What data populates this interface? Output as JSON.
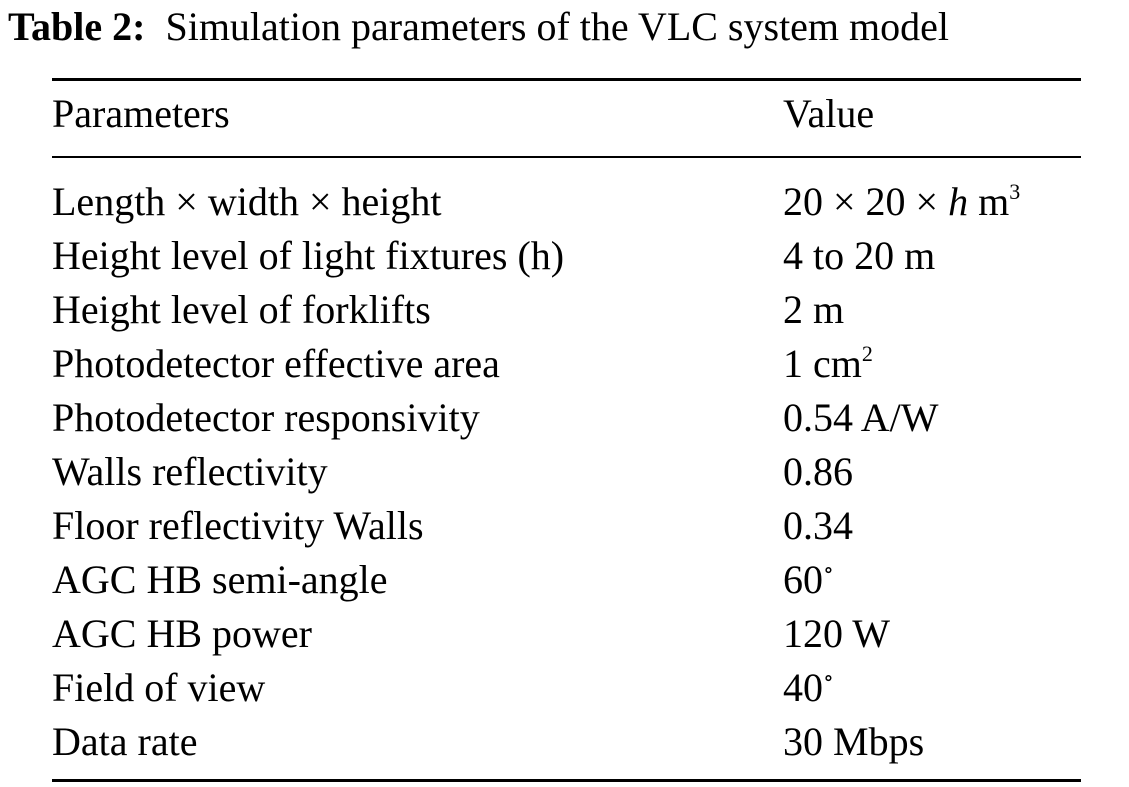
{
  "caption": {
    "label": "Table 2:",
    "text": "Simulation parameters of the VLC system model"
  },
  "table": {
    "headers": {
      "param": "Parameters",
      "value": "Value"
    },
    "rows": [
      {
        "param": "Length × width × height",
        "value": "20 × 20 × ",
        "value_ital": "h",
        "value_tail": " m",
        "value_sup": "3"
      },
      {
        "param": "Height level of light fixtures (h)",
        "value": "4 to 20 m",
        "value_ital": "",
        "value_tail": "",
        "value_sup": ""
      },
      {
        "param": "Height level of forklifts",
        "value": "2 m",
        "value_ital": "",
        "value_tail": "",
        "value_sup": ""
      },
      {
        "param": "Photodetector effective area",
        "value": "1 cm",
        "value_ital": "",
        "value_tail": "",
        "value_sup": "2"
      },
      {
        "param": "Photodetector responsivity",
        "value": "0.54 A/W",
        "value_ital": "",
        "value_tail": "",
        "value_sup": ""
      },
      {
        "param": "Walls reflectivity",
        "value": "0.86",
        "value_ital": "",
        "value_tail": "",
        "value_sup": ""
      },
      {
        "param": "Floor reflectivity Walls",
        "value": "0.34",
        "value_ital": "",
        "value_tail": "",
        "value_sup": ""
      },
      {
        "param": "AGC HB semi-angle",
        "value": "60",
        "value_ital": "",
        "value_tail": "",
        "value_sup": "∘"
      },
      {
        "param": "AGC HB power",
        "value": "120 W",
        "value_ital": "",
        "value_tail": "",
        "value_sup": ""
      },
      {
        "param": "Field of view",
        "value": "40",
        "value_ital": "",
        "value_tail": "",
        "value_sup": "∘"
      },
      {
        "param": "Data rate",
        "value": "30 Mbps",
        "value_ital": "",
        "value_tail": "",
        "value_sup": ""
      }
    ]
  }
}
